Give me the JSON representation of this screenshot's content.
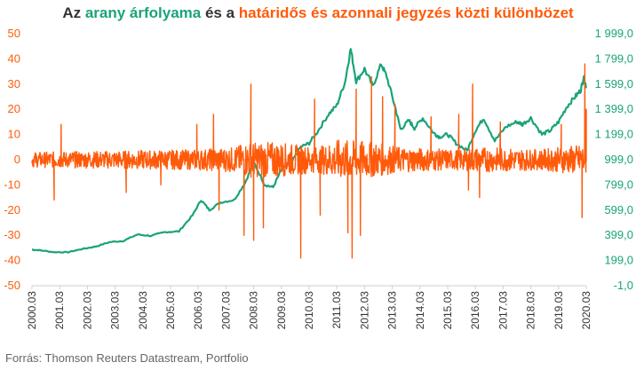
{
  "chart_data": {
    "type": "line",
    "title_parts": [
      {
        "text": "Az ",
        "color": "#333333"
      },
      {
        "text": "arany árfolyama",
        "color": "#1aa37a"
      },
      {
        "text": " és a ",
        "color": "#333333"
      },
      {
        "text": "határidős és azonnali jegyzés közti különbözet",
        "color": "#ff5a0a"
      }
    ],
    "source": "Forrás: Thomson Reuters Datastream, Portfolio",
    "x_ticks": [
      "2000.03",
      "2001.03",
      "2002.03",
      "2003.03",
      "2004.03",
      "2005.03",
      "2006.03",
      "2007.03",
      "2008.03",
      "2009.03",
      "2010.03",
      "2011.03",
      "2012.03",
      "2013.03",
      "2014.03",
      "2015.03",
      "2016.03",
      "2017.03",
      "2018.03",
      "2019.03",
      "2020.03"
    ],
    "left_axis": {
      "ticks": [
        "50",
        "40",
        "30",
        "20",
        "10",
        "0",
        "-10",
        "-20",
        "-30",
        "-40",
        "-50"
      ],
      "ylim": [
        -50,
        50
      ],
      "color": "#ff5a0a"
    },
    "right_axis": {
      "ticks": [
        "1 999,0",
        "1 799,0",
        "1 599,0",
        "1 399,0",
        "1 199,0",
        "999,0",
        "799,0",
        "599,0",
        "399,0",
        "199,0",
        "-1,0"
      ],
      "ylim": [
        -1,
        1999
      ],
      "color": "#1aa37a"
    },
    "series": [
      {
        "axis": "right",
        "color": "#1aa37a",
        "points": [
          [
            2000.2,
            285
          ],
          [
            2000.5,
            280
          ],
          [
            2001.0,
            265
          ],
          [
            2001.5,
            265
          ],
          [
            2002.0,
            290
          ],
          [
            2002.5,
            310
          ],
          [
            2003.0,
            345
          ],
          [
            2003.5,
            355
          ],
          [
            2004.0,
            405
          ],
          [
            2004.5,
            395
          ],
          [
            2005.0,
            425
          ],
          [
            2005.5,
            430
          ],
          [
            2006.0,
            560
          ],
          [
            2006.3,
            680
          ],
          [
            2006.6,
            600
          ],
          [
            2007.0,
            660
          ],
          [
            2007.5,
            680
          ],
          [
            2007.9,
            820
          ],
          [
            2008.2,
            980
          ],
          [
            2008.6,
            800
          ],
          [
            2008.9,
            780
          ],
          [
            2009.2,
            920
          ],
          [
            2009.6,
            990
          ],
          [
            2009.9,
            1100
          ],
          [
            2010.2,
            1130
          ],
          [
            2010.5,
            1220
          ],
          [
            2010.9,
            1360
          ],
          [
            2011.2,
            1430
          ],
          [
            2011.5,
            1620
          ],
          [
            2011.7,
            1880
          ],
          [
            2011.9,
            1620
          ],
          [
            2012.2,
            1720
          ],
          [
            2012.5,
            1580
          ],
          [
            2012.8,
            1760
          ],
          [
            2013.0,
            1660
          ],
          [
            2013.3,
            1420
          ],
          [
            2013.5,
            1240
          ],
          [
            2013.8,
            1310
          ],
          [
            2014.0,
            1250
          ],
          [
            2014.3,
            1330
          ],
          [
            2014.7,
            1210
          ],
          [
            2014.9,
            1180
          ],
          [
            2015.2,
            1200
          ],
          [
            2015.5,
            1130
          ],
          [
            2015.9,
            1070
          ],
          [
            2016.2,
            1230
          ],
          [
            2016.5,
            1330
          ],
          [
            2016.9,
            1150
          ],
          [
            2017.3,
            1260
          ],
          [
            2017.7,
            1300
          ],
          [
            2017.9,
            1280
          ],
          [
            2018.2,
            1330
          ],
          [
            2018.6,
            1200
          ],
          [
            2018.9,
            1230
          ],
          [
            2019.2,
            1300
          ],
          [
            2019.5,
            1420
          ],
          [
            2019.8,
            1500
          ],
          [
            2020.0,
            1550
          ],
          [
            2020.1,
            1650
          ],
          [
            2020.2,
            1580
          ]
        ]
      },
      {
        "axis": "left",
        "color": "#ff5a0a",
        "base_envelope": [
          [
            2000.0,
            3
          ],
          [
            2006.0,
            4
          ],
          [
            2007.5,
            5
          ],
          [
            2008.0,
            7
          ],
          [
            2009.0,
            7
          ],
          [
            2010.5,
            5
          ],
          [
            2011.3,
            8
          ],
          [
            2012.5,
            7
          ],
          [
            2013.5,
            5
          ],
          [
            2015.5,
            4
          ],
          [
            2016.5,
            5
          ],
          [
            2018.5,
            4
          ],
          [
            2020.0,
            6
          ]
        ],
        "spikes": [
          [
            2001.0,
            -16
          ],
          [
            2001.25,
            14
          ],
          [
            2003.6,
            -13
          ],
          [
            2004.85,
            -10
          ],
          [
            2006.15,
            14
          ],
          [
            2006.75,
            18
          ],
          [
            2006.95,
            -20
          ],
          [
            2007.85,
            -30
          ],
          [
            2008.1,
            30
          ],
          [
            2008.2,
            -32
          ],
          [
            2008.55,
            -27
          ],
          [
            2009.9,
            -39
          ],
          [
            2010.4,
            24
          ],
          [
            2010.6,
            -22
          ],
          [
            2011.6,
            -29
          ],
          [
            2011.75,
            -39
          ],
          [
            2011.9,
            28
          ],
          [
            2012.05,
            -30
          ],
          [
            2012.45,
            33
          ],
          [
            2012.85,
            25
          ],
          [
            2013.3,
            22
          ],
          [
            2014.6,
            17
          ],
          [
            2015.6,
            18
          ],
          [
            2015.95,
            -12
          ],
          [
            2016.1,
            30
          ],
          [
            2016.35,
            -15
          ],
          [
            2017.1,
            15
          ],
          [
            2019.3,
            14
          ],
          [
            2020.05,
            -23
          ],
          [
            2020.15,
            38
          ],
          [
            2020.2,
            20
          ]
        ]
      }
    ]
  }
}
